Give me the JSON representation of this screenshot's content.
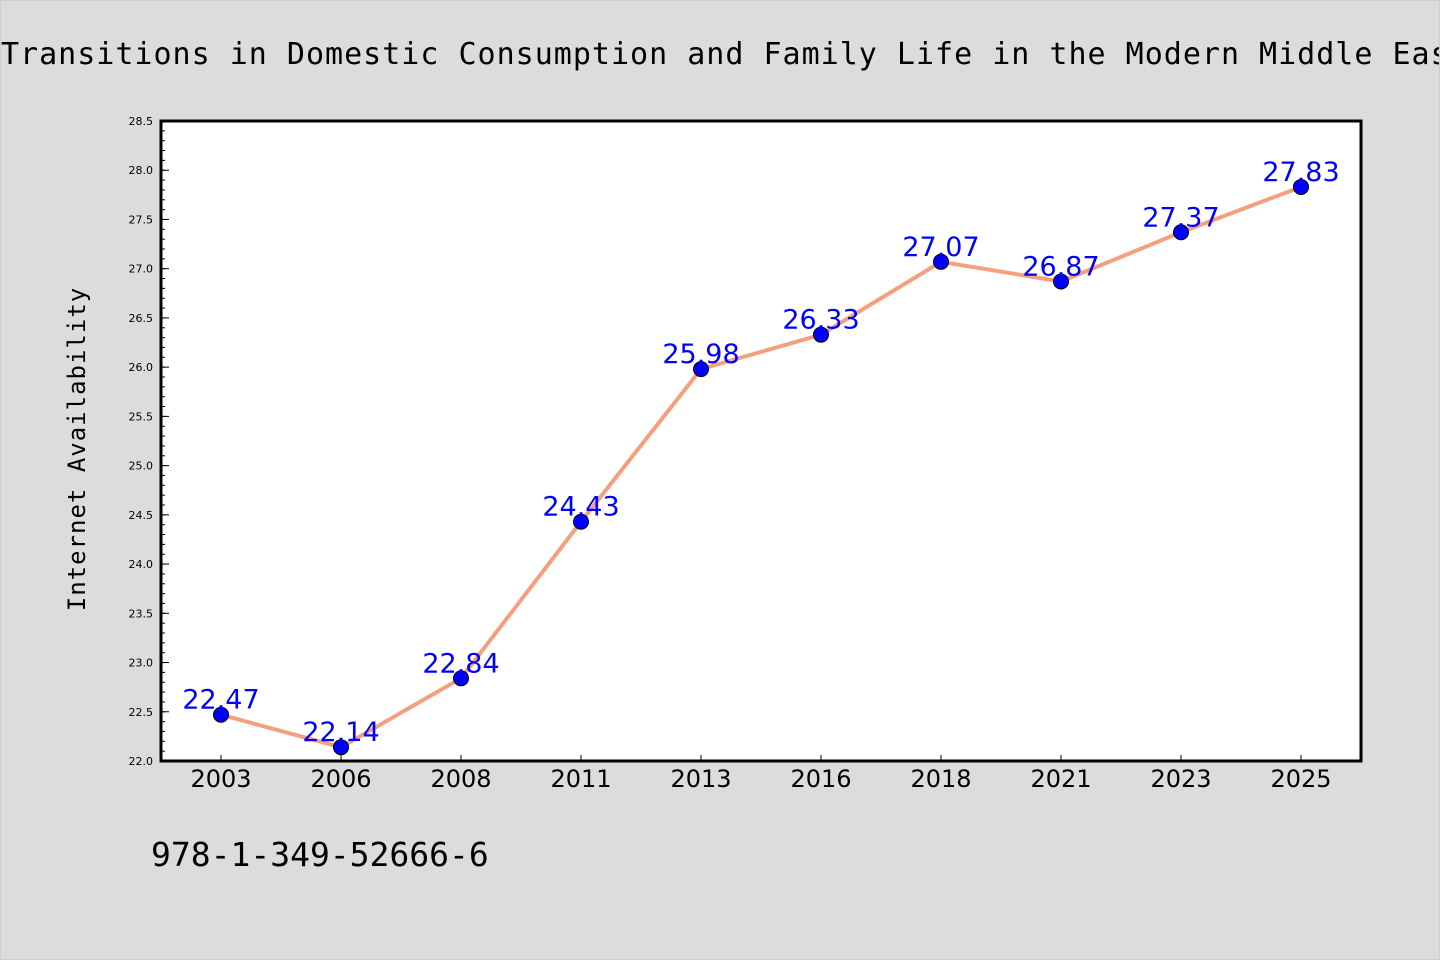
{
  "title": "Transitions in Domestic Consumption and Family Life in the Modern Middle East: H",
  "isbn": "978-1-349-52666-6",
  "colors": {
    "background": "#dcdcdc",
    "plot_background": "#ffffff",
    "line": "#f4a07d",
    "marker": "#0000ff",
    "data_label": "#0000ff"
  },
  "chart_data": {
    "type": "line",
    "categories": [
      "2003",
      "2006",
      "2008",
      "2011",
      "2013",
      "2016",
      "2018",
      "2021",
      "2023",
      "2025"
    ],
    "series": [
      {
        "values": [
          22.47,
          22.14,
          22.84,
          24.43,
          25.98,
          26.33,
          27.07,
          26.87,
          27.37,
          27.83
        ]
      }
    ],
    "data_labels": [
      "22.47",
      "22.14",
      "22.84",
      "24.43",
      "25.98",
      "26.33",
      "27.07",
      "26.87",
      "27.37",
      "27.83"
    ],
    "title": "Transitions in Domestic Consumption and Family Life in the Modern Middle East: H",
    "xlabel": "",
    "ylabel": "Internet Availability",
    "ylim": [
      22.0,
      28.5
    ],
    "yticks": [
      "22.0",
      "22.5",
      "23.0",
      "23.5",
      "24.0",
      "24.5",
      "25.0",
      "25.5",
      "26.0",
      "26.5",
      "27.0",
      "27.5",
      "28.0",
      "28.5"
    ],
    "grid": false,
    "legend": "none"
  }
}
